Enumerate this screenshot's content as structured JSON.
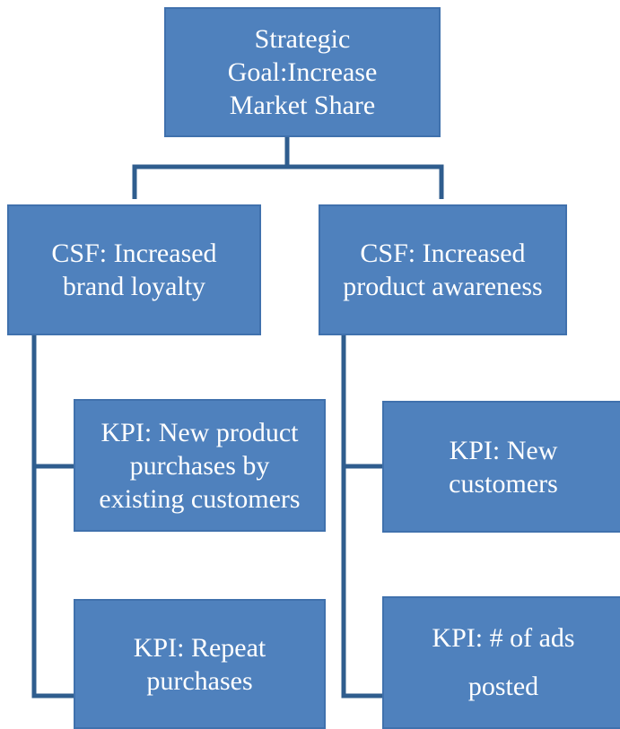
{
  "nodes": [
    {
      "lines": [
        "Strategic",
        "Goal:Increase",
        "Market Share"
      ]
    },
    {
      "lines": [
        "CSF: Increased",
        "brand loyalty"
      ]
    },
    {
      "lines": [
        "CSF: Increased",
        "product awareness"
      ]
    },
    {
      "lines": [
        "KPI: New product",
        "purchases by",
        "existing customers"
      ]
    },
    {
      "lines": [
        "KPI: Repeat",
        "purchases"
      ]
    },
    {
      "lines": [
        "KPI: New",
        "customers"
      ]
    },
    {
      "lines": [
        "KPI: # of ads",
        "posted"
      ]
    }
  ]
}
